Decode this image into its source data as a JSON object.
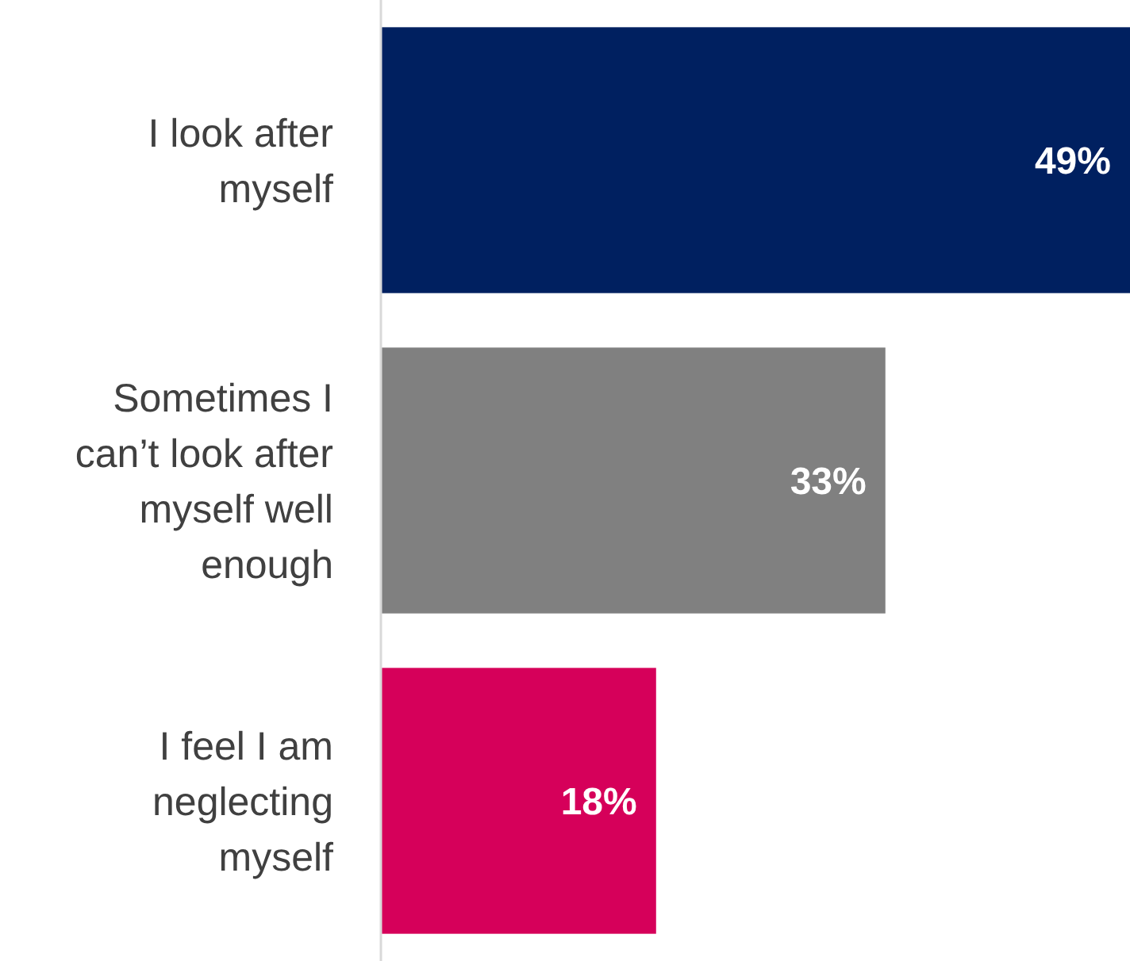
{
  "chart_data": {
    "type": "bar",
    "orientation": "horizontal",
    "categories": [
      "I look after myself",
      "Sometimes I can’t look after myself well enough",
      "I feel I am neglecting myself"
    ],
    "values": [
      49,
      33,
      18
    ],
    "value_labels": [
      "49%",
      "33%",
      "18%"
    ],
    "colors": [
      "#002060",
      "#808080",
      "#d6005a"
    ]
  }
}
